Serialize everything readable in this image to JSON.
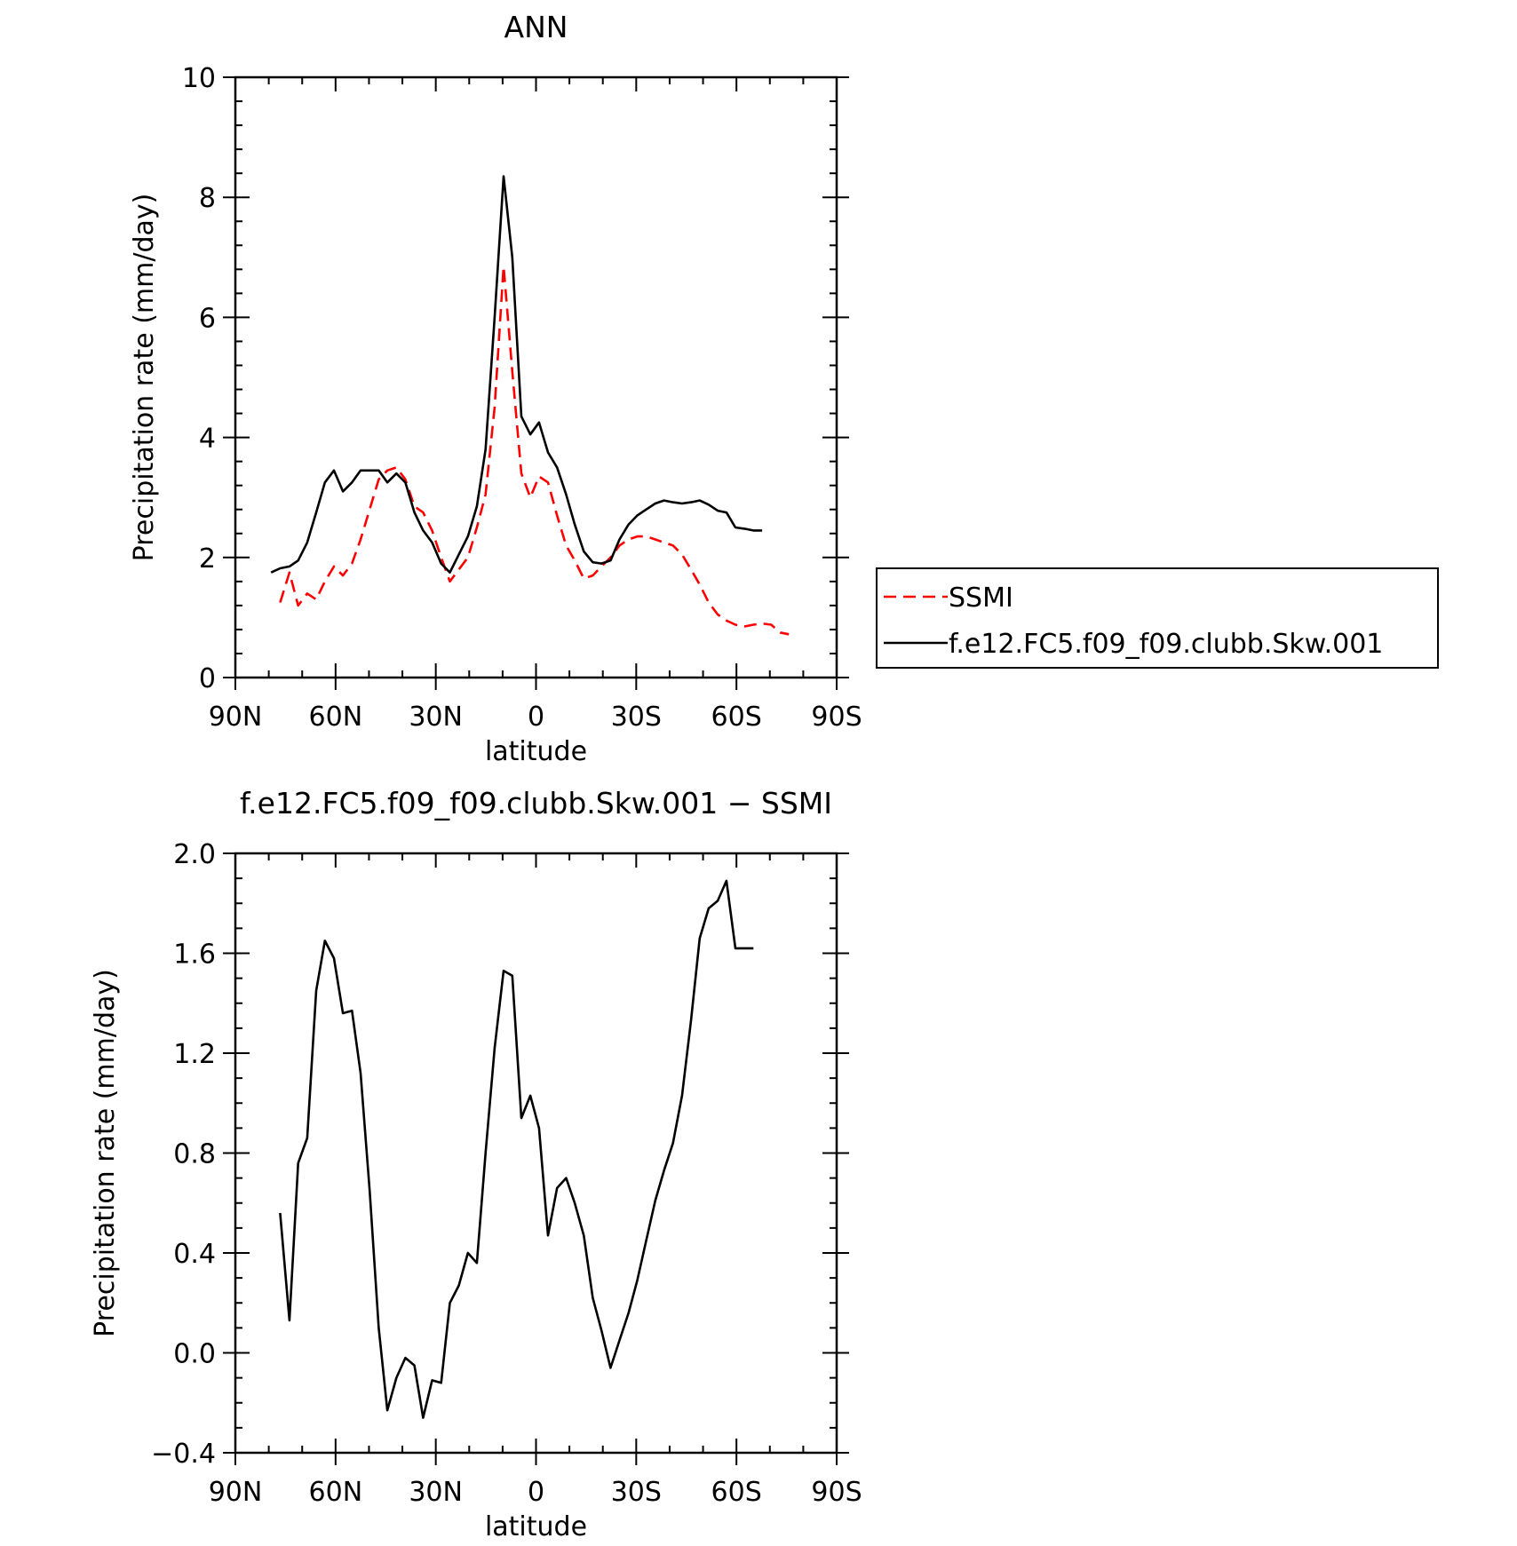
{
  "chart_data": [
    {
      "type": "line",
      "title": "ANN",
      "xlabel": "latitude",
      "ylabel": "Precipitation rate (mm/day)",
      "xlim": [
        90,
        -90
      ],
      "ylim": [
        0,
        10
      ],
      "xticks": [
        {
          "value": 90,
          "label": "90N"
        },
        {
          "value": 60,
          "label": "60N"
        },
        {
          "value": 30,
          "label": "30N"
        },
        {
          "value": 0,
          "label": "0"
        },
        {
          "value": -30,
          "label": "30S"
        },
        {
          "value": -60,
          "label": "60S"
        },
        {
          "value": -90,
          "label": "90S"
        }
      ],
      "yticks": [
        {
          "value": 0,
          "label": "0"
        },
        {
          "value": 2,
          "label": "2"
        },
        {
          "value": 4,
          "label": "4"
        },
        {
          "value": 6,
          "label": "6"
        },
        {
          "value": 8,
          "label": "8"
        },
        {
          "value": 10,
          "label": "10"
        }
      ],
      "legend": "right",
      "series": [
        {
          "name": "SSMI",
          "color": "#ff0000",
          "dash": "dashed",
          "x": [
            76.6,
            73.8,
            71.2,
            68.5,
            65.8,
            63.2,
            60.5,
            57.8,
            55.1,
            52.5,
            49.8,
            47.1,
            44.5,
            41.8,
            39.1,
            36.4,
            33.8,
            31.1,
            28.4,
            25.8,
            23.1,
            20.4,
            17.7,
            15.1,
            12.4,
            9.7,
            7.1,
            4.4,
            1.7,
            -0.9,
            -3.6,
            -6.3,
            -9.0,
            -11.6,
            -14.3,
            -17.0,
            -19.6,
            -22.3,
            -25.0,
            -27.7,
            -30.3,
            -33.0,
            -35.7,
            -38.3,
            -41.0,
            -43.7,
            -46.4,
            -49.0,
            -51.7,
            -54.4,
            -57.0,
            -59.7,
            -62.4,
            -65.1,
            -67.7,
            -70.4,
            -73.1,
            -75.7
          ],
          "y": [
            1.25,
            1.75,
            1.2,
            1.4,
            1.3,
            1.6,
            1.85,
            1.7,
            1.9,
            2.3,
            2.8,
            3.3,
            3.45,
            3.5,
            3.3,
            2.85,
            2.75,
            2.45,
            2.0,
            1.6,
            1.8,
            2.0,
            2.5,
            3.05,
            4.5,
            6.85,
            5.1,
            3.4,
            3.0,
            3.35,
            3.25,
            2.7,
            2.2,
            1.95,
            1.65,
            1.7,
            1.85,
            2.0,
            2.2,
            2.3,
            2.35,
            2.35,
            2.3,
            2.25,
            2.2,
            2.05,
            1.8,
            1.55,
            1.25,
            1.05,
            0.95,
            0.88,
            0.85,
            0.88,
            0.9,
            0.88,
            0.75,
            0.72
          ]
        },
        {
          "name": "f.e12.FC5.f09_f09.clubb.Skw.001",
          "color": "#000000",
          "dash": "solid",
          "x": [
            79.3,
            76.6,
            73.8,
            71.2,
            68.5,
            65.8,
            63.2,
            60.5,
            57.8,
            55.1,
            52.5,
            49.8,
            47.1,
            44.5,
            41.8,
            39.1,
            36.4,
            33.8,
            31.1,
            28.4,
            25.8,
            23.1,
            20.4,
            17.7,
            15.1,
            12.4,
            9.7,
            7.1,
            4.4,
            1.7,
            -0.9,
            -3.6,
            -6.3,
            -9.0,
            -11.6,
            -14.3,
            -17.0,
            -19.6,
            -22.3,
            -25.0,
            -27.7,
            -30.3,
            -33.0,
            -35.7,
            -38.3,
            -41.0,
            -43.7,
            -46.4,
            -49.0,
            -51.7,
            -54.4,
            -57.0,
            -59.7,
            -62.4,
            -65.1,
            -67.7
          ],
          "y": [
            1.75,
            1.82,
            1.85,
            1.95,
            2.25,
            2.75,
            3.25,
            3.45,
            3.1,
            3.25,
            3.45,
            3.45,
            3.45,
            3.25,
            3.4,
            3.25,
            2.75,
            2.45,
            2.25,
            1.9,
            1.75,
            2.05,
            2.35,
            2.85,
            3.8,
            6.0,
            8.35,
            7.0,
            4.35,
            4.05,
            4.25,
            3.75,
            3.5,
            3.05,
            2.55,
            2.1,
            1.92,
            1.9,
            1.95,
            2.3,
            2.55,
            2.7,
            2.8,
            2.9,
            2.95,
            2.92,
            2.9,
            2.92,
            2.95,
            2.88,
            2.78,
            2.75,
            2.5,
            2.48,
            2.45,
            2.45
          ]
        }
      ]
    },
    {
      "type": "line",
      "title": "f.e12.FC5.f09_f09.clubb.Skw.001 − SSMI",
      "xlabel": "latitude",
      "ylabel": "Precipitation rate (mm/day)",
      "xlim": [
        90,
        -90
      ],
      "ylim": [
        -0.4,
        2.0
      ],
      "xticks": [
        {
          "value": 90,
          "label": "90N"
        },
        {
          "value": 60,
          "label": "60N"
        },
        {
          "value": 30,
          "label": "30N"
        },
        {
          "value": 0,
          "label": "0"
        },
        {
          "value": -30,
          "label": "30S"
        },
        {
          "value": -60,
          "label": "60S"
        },
        {
          "value": -90,
          "label": "90S"
        }
      ],
      "yticks": [
        {
          "value": -0.4,
          "label": "−0.4"
        },
        {
          "value": 0.0,
          "label": "0.0"
        },
        {
          "value": 0.4,
          "label": "0.4"
        },
        {
          "value": 0.8,
          "label": "0.8"
        },
        {
          "value": 1.2,
          "label": "1.2"
        },
        {
          "value": 1.6,
          "label": "1.6"
        },
        {
          "value": 2.0,
          "label": "2.0"
        }
      ],
      "series": [
        {
          "color": "#000000",
          "dash": "solid",
          "x": [
            76.6,
            73.8,
            71.2,
            68.5,
            65.8,
            63.2,
            60.5,
            57.8,
            55.1,
            52.5,
            49.8,
            47.1,
            44.5,
            41.8,
            39.1,
            36.4,
            33.8,
            31.1,
            28.4,
            25.8,
            23.1,
            20.4,
            17.7,
            15.1,
            12.4,
            9.7,
            7.1,
            4.4,
            1.7,
            -0.9,
            -3.6,
            -6.3,
            -9.0,
            -11.6,
            -14.3,
            -17.0,
            -19.6,
            -22.3,
            -25.0,
            -27.7,
            -30.3,
            -33.0,
            -35.7,
            -38.3,
            -41.0,
            -43.7,
            -46.4,
            -49.0,
            -51.7,
            -54.4,
            -57.0,
            -59.7,
            -62.4,
            -65.1
          ],
          "y": [
            0.56,
            0.13,
            0.76,
            0.86,
            1.45,
            1.65,
            1.58,
            1.36,
            1.37,
            1.12,
            0.65,
            0.1,
            -0.23,
            -0.1,
            -0.02,
            -0.05,
            -0.26,
            -0.11,
            -0.12,
            0.2,
            0.27,
            0.4,
            0.36,
            0.8,
            1.22,
            1.53,
            1.51,
            0.94,
            1.03,
            0.9,
            0.47,
            0.66,
            0.7,
            0.6,
            0.47,
            0.22,
            0.09,
            -0.06,
            0.05,
            0.16,
            0.29,
            0.45,
            0.61,
            0.73,
            0.84,
            1.03,
            1.33,
            1.66,
            1.78,
            1.81,
            1.89,
            1.62,
            1.62,
            1.62
          ]
        }
      ]
    }
  ]
}
